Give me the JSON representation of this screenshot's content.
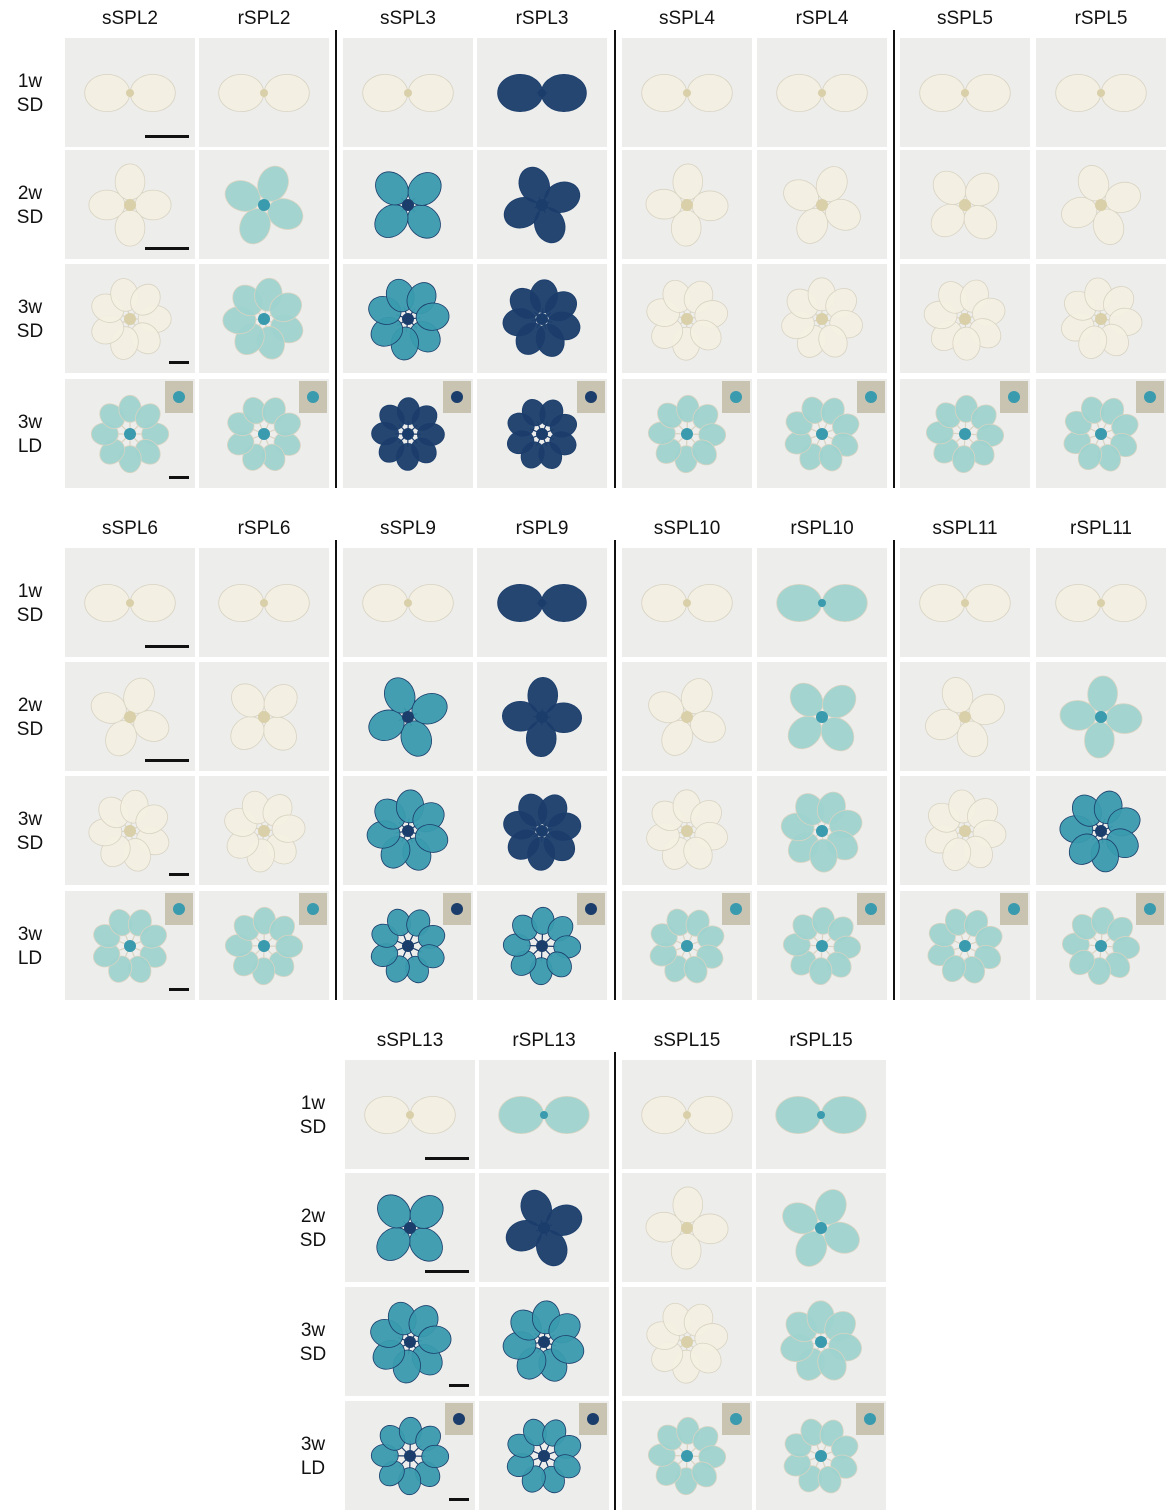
{
  "colors": {
    "background": "#ffffff",
    "panel_bg": "#ededeb",
    "leaf_pale": "#f3efe2",
    "leaf_edge": "#d8d3c2",
    "stain_light": "#9fd3cf",
    "stain_medium": "#3a9aae",
    "stain_dark": "#1b3d6b",
    "ink": "#111111"
  },
  "figure": {
    "blocks": [
      {
        "columns": [
          "sSPL2",
          "rSPL2",
          "sSPL3",
          "rSPL3",
          "sSPL4",
          "rSPL4",
          "sSPL5",
          "rSPL5"
        ],
        "rows": [
          {
            "age": "1w",
            "photoperiod": "SD",
            "stain": [
              0,
              0,
              0,
              3,
              0,
              0,
              0,
              0
            ]
          },
          {
            "age": "2w",
            "photoperiod": "SD",
            "stain": [
              0,
              1,
              2,
              3,
              0,
              0,
              0,
              0
            ]
          },
          {
            "age": "3w",
            "photoperiod": "SD",
            "stain": [
              0,
              1,
              2,
              3,
              0,
              0,
              0,
              0
            ]
          },
          {
            "age": "3w",
            "photoperiod": "LD",
            "stain": [
              1,
              1,
              3,
              3,
              1,
              1,
              1,
              1
            ]
          }
        ]
      },
      {
        "columns": [
          "sSPL6",
          "rSPL6",
          "sSPL9",
          "rSPL9",
          "sSPL10",
          "rSPL10",
          "sSPL11",
          "rSPL11"
        ],
        "rows": [
          {
            "age": "1w",
            "photoperiod": "SD",
            "stain": [
              0,
              0,
              0,
              3,
              0,
              1,
              0,
              0
            ]
          },
          {
            "age": "2w",
            "photoperiod": "SD",
            "stain": [
              0,
              0,
              2,
              3,
              0,
              1,
              0,
              1
            ]
          },
          {
            "age": "3w",
            "photoperiod": "SD",
            "stain": [
              0,
              0,
              2,
              3,
              0,
              1,
              0,
              2
            ]
          },
          {
            "age": "3w",
            "photoperiod": "LD",
            "stain": [
              1,
              1,
              2,
              2,
              1,
              1,
              1,
              1
            ]
          }
        ]
      },
      {
        "columns": [
          "sSPL13",
          "rSPL13",
          "sSPL15",
          "rSPL15"
        ],
        "rows": [
          {
            "age": "1w",
            "photoperiod": "SD",
            "stain": [
              0,
              1,
              0,
              1
            ]
          },
          {
            "age": "2w",
            "photoperiod": "SD",
            "stain": [
              2,
              3,
              0,
              1
            ]
          },
          {
            "age": "3w",
            "photoperiod": "SD",
            "stain": [
              2,
              2,
              0,
              1
            ]
          },
          {
            "age": "3w",
            "photoperiod": "LD",
            "stain": [
              2,
              2,
              1,
              1
            ]
          }
        ]
      }
    ]
  }
}
